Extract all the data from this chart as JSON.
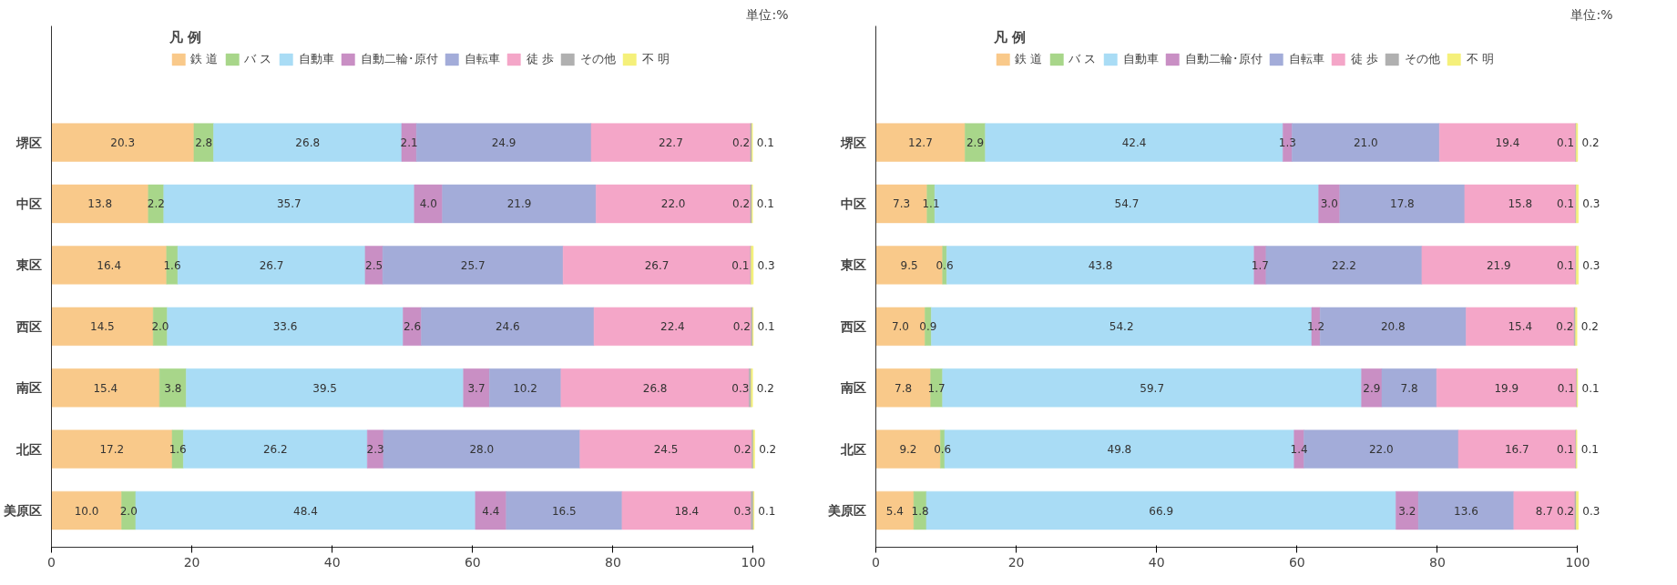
{
  "chart_data": [
    {
      "type": "bar",
      "orientation": "horizontal",
      "stacked": true,
      "legend": "top",
      "legend_title": "凡 例",
      "grid": false,
      "annotations": [
        "単位:%"
      ],
      "categories": [
        "堺区",
        "中区",
        "東区",
        "西区",
        "南区",
        "北区",
        "美原区"
      ],
      "xlim": [
        0,
        100
      ],
      "xticks": [
        0,
        20,
        40,
        60,
        80,
        100
      ],
      "series": [
        {
          "name": "鉄 道",
          "color": "#f9c98a",
          "values": [
            20.3,
            13.8,
            16.4,
            14.5,
            15.4,
            17.2,
            10.0
          ],
          "value_labels": [
            "20.3",
            "13.8",
            "16.4",
            "14.5",
            "15.4",
            "17.2",
            "10.0"
          ]
        },
        {
          "name": "バ ス",
          "color": "#a8d68a",
          "values": [
            2.8,
            2.2,
            1.6,
            2.0,
            3.8,
            1.6,
            2.0
          ],
          "value_labels": [
            "2.8",
            "2.2",
            "1.6",
            "2.0",
            "3.8",
            "1.6",
            "2.0"
          ]
        },
        {
          "name": "自動車",
          "color": "#a9dcf5",
          "values": [
            26.8,
            35.7,
            26.7,
            33.6,
            39.5,
            26.2,
            48.4
          ],
          "value_labels": [
            "26.8",
            "35.7",
            "26.7",
            "33.6",
            "39.5",
            "26.2",
            "48.4"
          ]
        },
        {
          "name": "自動二輪･原付",
          "color": "#c98fc4",
          "values": [
            2.1,
            4.0,
            2.5,
            2.6,
            3.7,
            2.3,
            4.4
          ],
          "value_labels": [
            "2.1",
            "4.0",
            "2.5",
            "2.6",
            "3.7",
            "2.3",
            "4.4"
          ]
        },
        {
          "name": "自転車",
          "color": "#a3acd9",
          "values": [
            24.9,
            21.9,
            25.7,
            24.6,
            10.2,
            28.0,
            16.5
          ],
          "value_labels": [
            "24.9",
            "21.9",
            "25.7",
            "24.6",
            "10.2",
            "28.0",
            "16.5"
          ]
        },
        {
          "name": "徒 歩",
          "color": "#f4a6c8",
          "values": [
            22.7,
            22.0,
            26.7,
            22.4,
            26.8,
            24.5,
            18.4
          ],
          "value_labels": [
            "22.7",
            "22.0",
            "26.7",
            "22.4",
            "26.8",
            "24.5",
            "18.4"
          ]
        },
        {
          "name": "その他",
          "color": "#b0b0b0",
          "values": [
            0.2,
            0.2,
            0.1,
            0.2,
            0.3,
            0.2,
            0.3
          ],
          "value_labels": [
            "0.2",
            "0.2",
            "0.1",
            "0.2",
            "0.3",
            "0.2",
            "0.3"
          ]
        },
        {
          "name": "不 明",
          "color": "#f5f07a",
          "values": [
            0.1,
            0.1,
            0.3,
            0.1,
            0.2,
            0.2,
            0.1
          ],
          "value_labels": [
            "0.1",
            "0.1",
            "0.3",
            "0.1",
            "0.2",
            "0.2",
            "0.1"
          ]
        }
      ]
    },
    {
      "type": "bar",
      "orientation": "horizontal",
      "stacked": true,
      "legend": "top",
      "legend_title": "凡 例",
      "grid": false,
      "annotations": [
        "単位:%"
      ],
      "categories": [
        "堺区",
        "中区",
        "東区",
        "西区",
        "南区",
        "北区",
        "美原区"
      ],
      "xlim": [
        0,
        100
      ],
      "xticks": [
        0,
        20,
        40,
        60,
        80,
        100
      ],
      "series": [
        {
          "name": "鉄 道",
          "color": "#f9c98a",
          "values": [
            12.7,
            7.3,
            9.5,
            7.0,
            7.8,
            9.2,
            5.4
          ],
          "value_labels": [
            "12.7",
            "7.3",
            "9.5",
            "7.0",
            "7.8",
            "9.2",
            "5.4"
          ]
        },
        {
          "name": "バ ス",
          "color": "#a8d68a",
          "values": [
            2.9,
            1.1,
            0.6,
            0.9,
            1.7,
            0.6,
            1.8
          ],
          "value_labels": [
            "2.9",
            "1.1",
            "0.6",
            "0.9",
            "1.7",
            "0.6",
            "1.8"
          ]
        },
        {
          "name": "自動車",
          "color": "#a9dcf5",
          "values": [
            42.4,
            54.7,
            43.8,
            54.2,
            59.7,
            49.8,
            66.9
          ],
          "value_labels": [
            "42.4",
            "54.7",
            "43.8",
            "54.2",
            "59.7",
            "49.8",
            "66.9"
          ]
        },
        {
          "name": "自動二輪･原付",
          "color": "#c98fc4",
          "values": [
            1.3,
            3.0,
            1.7,
            1.2,
            2.9,
            1.4,
            3.2
          ],
          "value_labels": [
            "1.3",
            "3.0",
            "1.7",
            "1.2",
            "2.9",
            "1.4",
            "3.2"
          ]
        },
        {
          "name": "自転車",
          "color": "#a3acd9",
          "values": [
            21.0,
            17.8,
            22.2,
            20.8,
            7.8,
            22.0,
            13.6
          ],
          "value_labels": [
            "21.0",
            "17.8",
            "22.2",
            "20.8",
            "7.8",
            "22.0",
            "13.6"
          ]
        },
        {
          "name": "徒 歩",
          "color": "#f4a6c8",
          "values": [
            19.4,
            15.8,
            21.9,
            15.4,
            19.9,
            16.7,
            8.7
          ],
          "value_labels": [
            "19.4",
            "15.8",
            "21.9",
            "15.4",
            "19.9",
            "16.7",
            "8.7"
          ]
        },
        {
          "name": "その他",
          "color": "#b0b0b0",
          "values": [
            0.1,
            0.1,
            0.1,
            0.2,
            0.1,
            0.1,
            0.2
          ],
          "value_labels": [
            "0.1",
            "0.1",
            "0.1",
            "0.2",
            "0.1",
            "0.1",
            "0.2"
          ]
        },
        {
          "name": "不 明",
          "color": "#f5f07a",
          "values": [
            0.2,
            0.3,
            0.3,
            0.2,
            0.1,
            0.1,
            0.3
          ],
          "value_labels": [
            "0.2",
            "0.3",
            "0.3",
            "0.2",
            "0.1",
            "0.1",
            "0.3"
          ]
        }
      ]
    }
  ]
}
